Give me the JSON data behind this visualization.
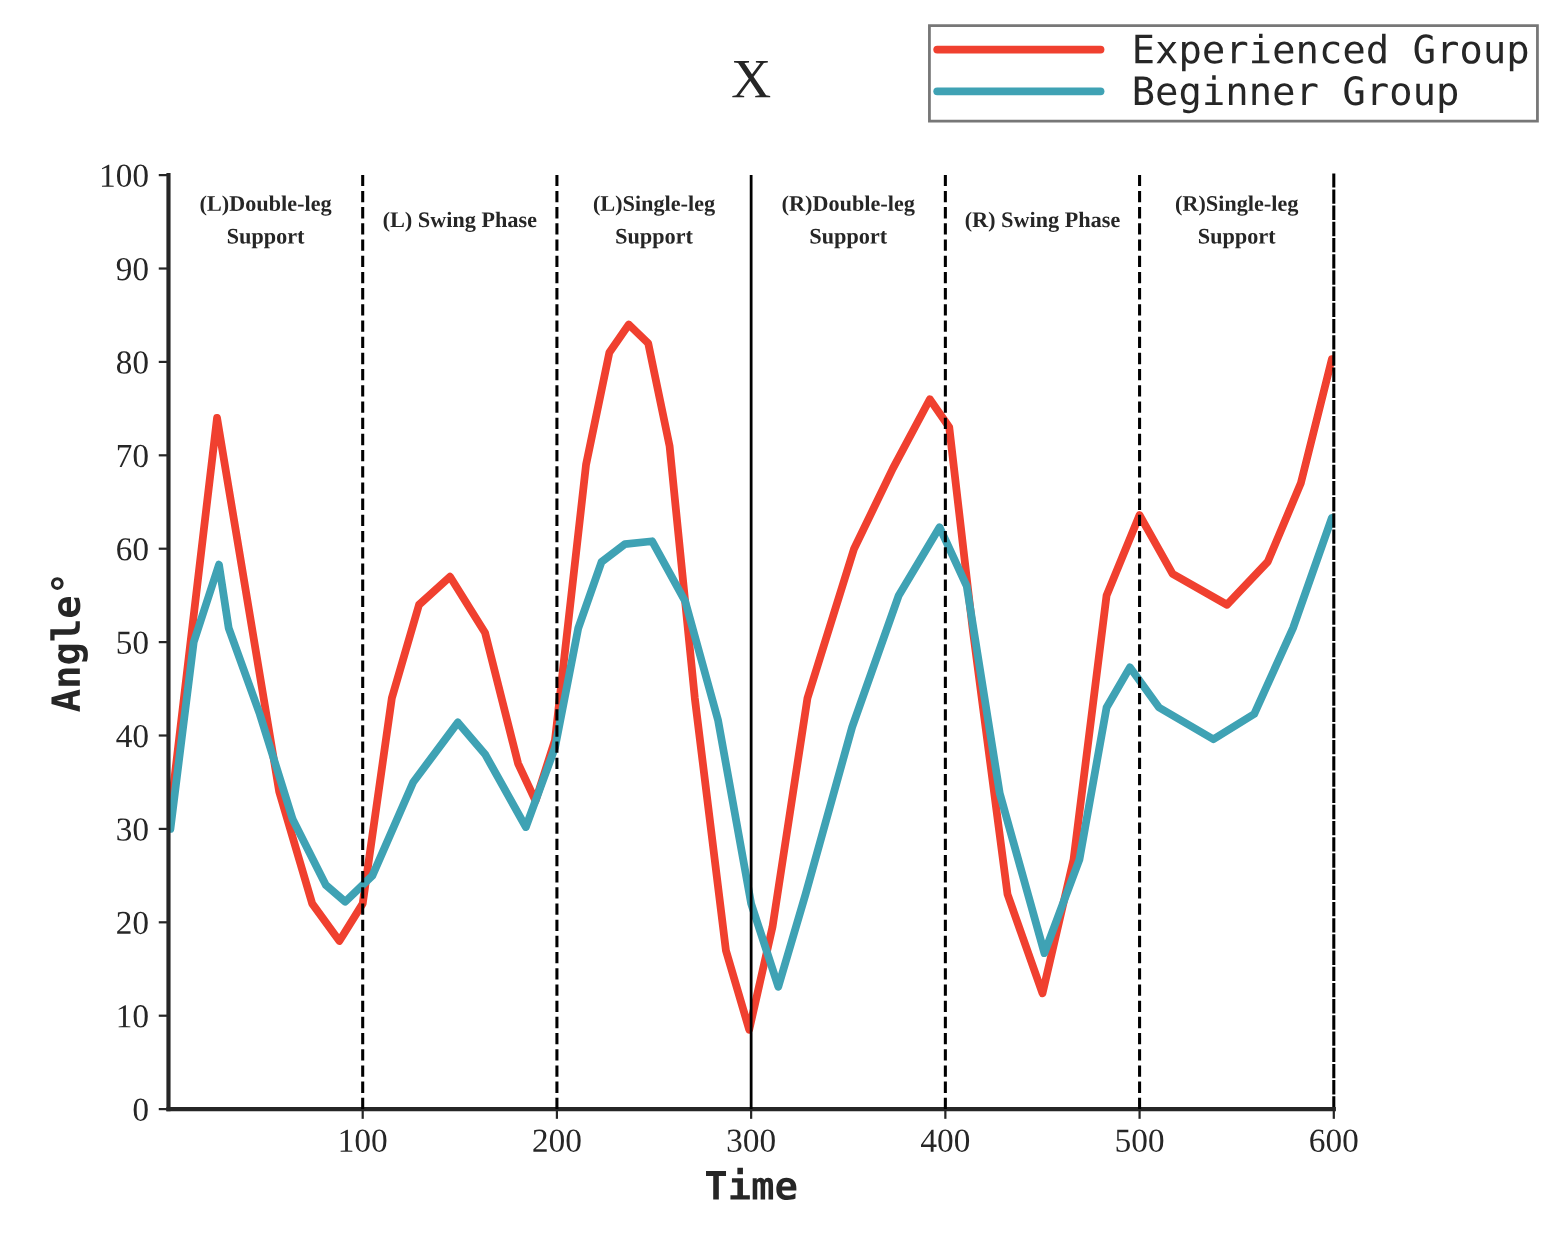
{
  "chart_data": {
    "type": "line",
    "title": "X",
    "xlabel": "Time",
    "ylabel": "Angle°",
    "xlim": [
      0,
      600
    ],
    "xticks": [
      100,
      200,
      300,
      400,
      500,
      600
    ],
    "ylim": [
      0,
      100
    ],
    "yticks": [
      0,
      10,
      20,
      30,
      40,
      50,
      60,
      70,
      80,
      90,
      100
    ],
    "grid": false,
    "legend": "top right",
    "line_style": "solid",
    "series": [
      {
        "name": "Experienced Group",
        "color": "#f0402f",
        "x": [
          0,
          25,
          35,
          57,
          74,
          88,
          100,
          115,
          129,
          145,
          163,
          180,
          189,
          199,
          215,
          227,
          237,
          247,
          258,
          271,
          287,
          299,
          311,
          329,
          353,
          373,
          392,
          402,
          414,
          432,
          450,
          466,
          483,
          500,
          517,
          545,
          566,
          583,
          599
        ],
        "values": [
          30,
          74,
          61.5,
          34,
          22,
          18,
          22,
          44,
          54,
          57,
          51,
          37,
          33,
          39.5,
          69,
          81,
          84,
          82,
          71,
          44,
          17,
          8.5,
          19.5,
          44,
          60,
          68.6,
          76,
          73,
          51.5,
          23,
          12.4,
          26.7,
          55,
          63.6,
          57.3,
          54,
          58.6,
          67,
          80.3
        ]
      },
      {
        "name": "Beginner Group",
        "color": "#3fa2b4",
        "x": [
          1,
          13,
          26,
          31,
          47,
          64,
          81,
          91,
          105,
          126,
          149,
          163,
          184,
          199,
          211,
          223,
          235,
          249,
          266,
          283,
          300,
          314,
          328,
          352,
          376,
          397,
          411,
          428,
          451,
          469,
          483,
          495,
          510,
          538,
          559,
          579,
          599
        ],
        "values": [
          30,
          50,
          58.3,
          51.5,
          42.3,
          31,
          24,
          22.2,
          25,
          35,
          41.4,
          38,
          30.2,
          38.7,
          51.5,
          58.6,
          60.5,
          60.8,
          54.4,
          41.6,
          22,
          13.1,
          23,
          40.9,
          55,
          62.3,
          56,
          33.8,
          16.7,
          26.7,
          43,
          47.3,
          43,
          39.6,
          42.3,
          51.5,
          63.3
        ]
      }
    ],
    "ref_lines": [
      {
        "axis": "x",
        "value": 100,
        "line_style": "dashed",
        "color": "#000000"
      },
      {
        "axis": "x",
        "value": 200,
        "line_style": "dashed",
        "color": "#000000"
      },
      {
        "axis": "x",
        "value": 300,
        "line_style": "solid",
        "color": "#000000"
      },
      {
        "axis": "x",
        "value": 400,
        "line_style": "dashed",
        "color": "#000000"
      },
      {
        "axis": "x",
        "value": 500,
        "line_style": "dashed",
        "color": "#000000"
      }
    ],
    "annotations": [
      "(L)Double-leg\nSupport",
      "(L) Swing Phase",
      "(L)Single-leg\nSupport",
      "(R)Double-leg\nSupport",
      "(R) Swing Phase",
      "(R)Single-leg\nSupport"
    ]
  }
}
